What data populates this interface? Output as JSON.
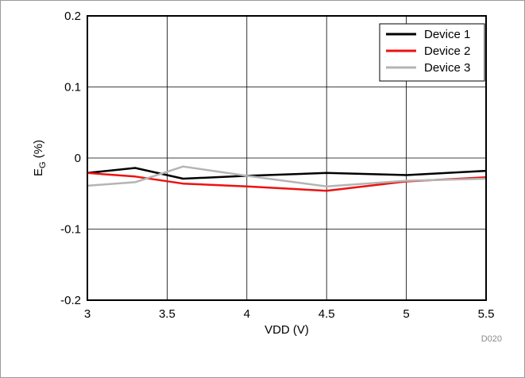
{
  "chart_data": {
    "type": "line",
    "title": "",
    "xlabel": "VDD (V)",
    "ylabel_main": "E",
    "ylabel_sub": "G",
    "ylabel_unit": " (%)",
    "xlim": [
      3,
      5.5
    ],
    "ylim": [
      -0.2,
      0.2
    ],
    "x_ticks": [
      3,
      3.5,
      4,
      4.5,
      5,
      5.5
    ],
    "x_tick_labels": [
      "3",
      "3.5",
      "4",
      "4.5",
      "5",
      "5.5"
    ],
    "y_ticks": [
      0.2,
      0.1,
      0,
      -0.1,
      -0.2
    ],
    "y_tick_labels": [
      "0.2",
      "0.1",
      "0",
      "-0.1",
      "-0.2"
    ],
    "grid": true,
    "legend_position": "top-right",
    "series": [
      {
        "name": "Device 1",
        "color": "#000000",
        "x": [
          3,
          3.3,
          3.6,
          4,
          4.5,
          5,
          5.5
        ],
        "y": [
          -0.021,
          -0.014,
          -0.029,
          -0.025,
          -0.021,
          -0.024,
          -0.018
        ]
      },
      {
        "name": "Device 2",
        "color": "#ee1111",
        "x": [
          3,
          3.3,
          3.6,
          4,
          4.5,
          5,
          5.5
        ],
        "y": [
          -0.021,
          -0.026,
          -0.036,
          -0.04,
          -0.046,
          -0.033,
          -0.027
        ]
      },
      {
        "name": "Device 3",
        "color": "#b4b4b4",
        "x": [
          3,
          3.3,
          3.6,
          4,
          4.5,
          5,
          5.5
        ],
        "y": [
          -0.039,
          -0.034,
          -0.012,
          -0.025,
          -0.04,
          -0.032,
          -0.029
        ]
      }
    ],
    "code": "D020"
  }
}
